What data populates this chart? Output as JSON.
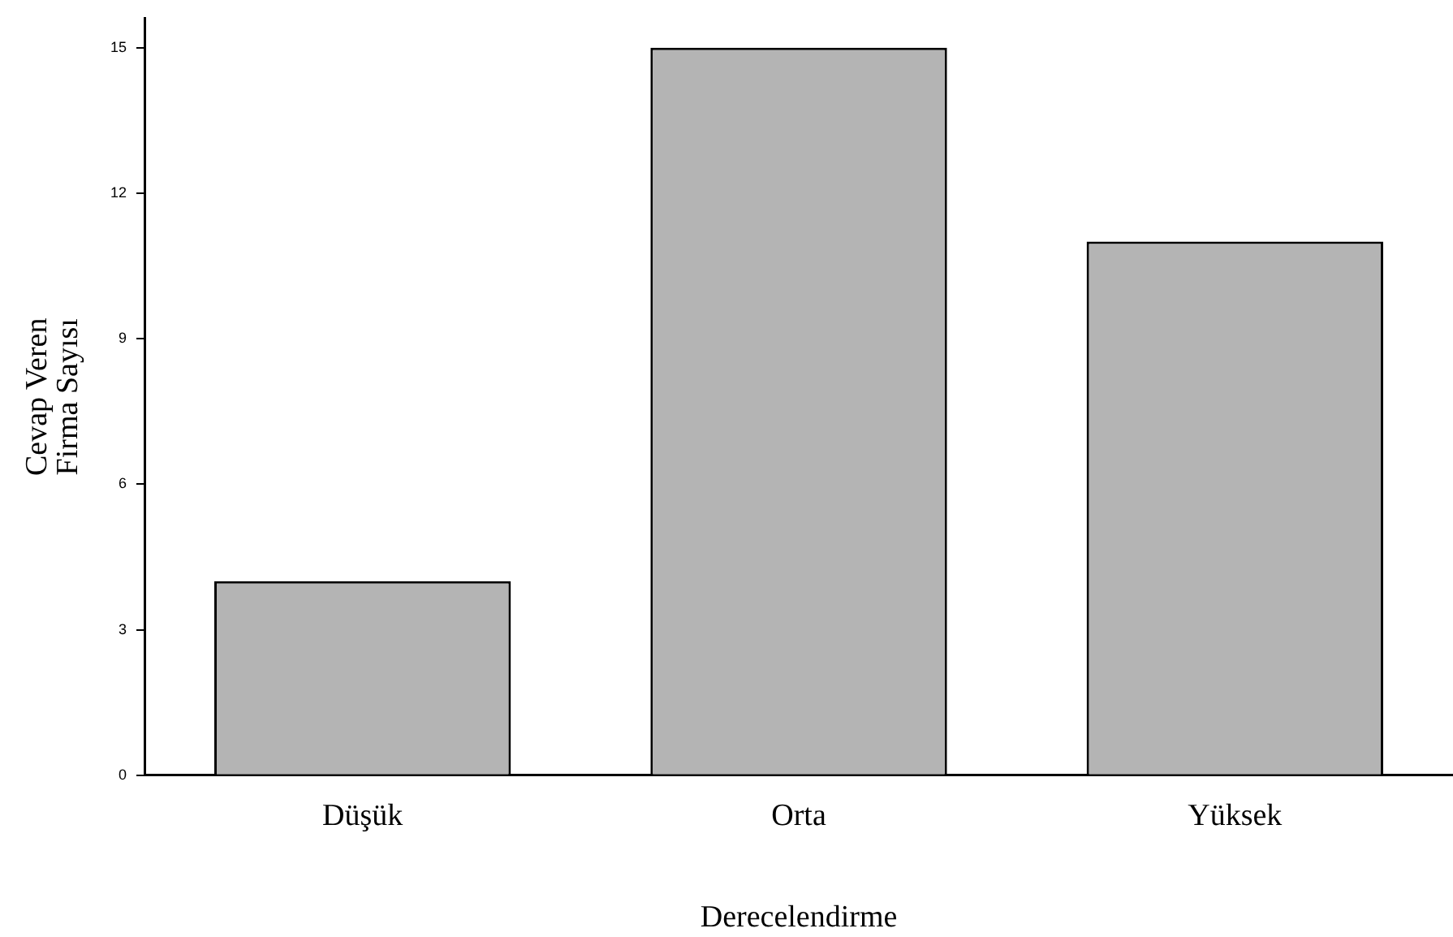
{
  "chart_data": {
    "type": "bar",
    "categories": [
      "Düşük",
      "Orta",
      "Yüksek"
    ],
    "values": [
      4,
      15,
      11
    ],
    "color": "#b4b4b4",
    "ylim": [
      0,
      15.6
    ],
    "yticks": [
      0,
      3,
      6,
      9,
      12,
      15
    ],
    "xlabel": "Derecelendirme",
    "ylabel": "Cevap Veren\nFirma Sayısı",
    "grid": false,
    "legend": false
  }
}
